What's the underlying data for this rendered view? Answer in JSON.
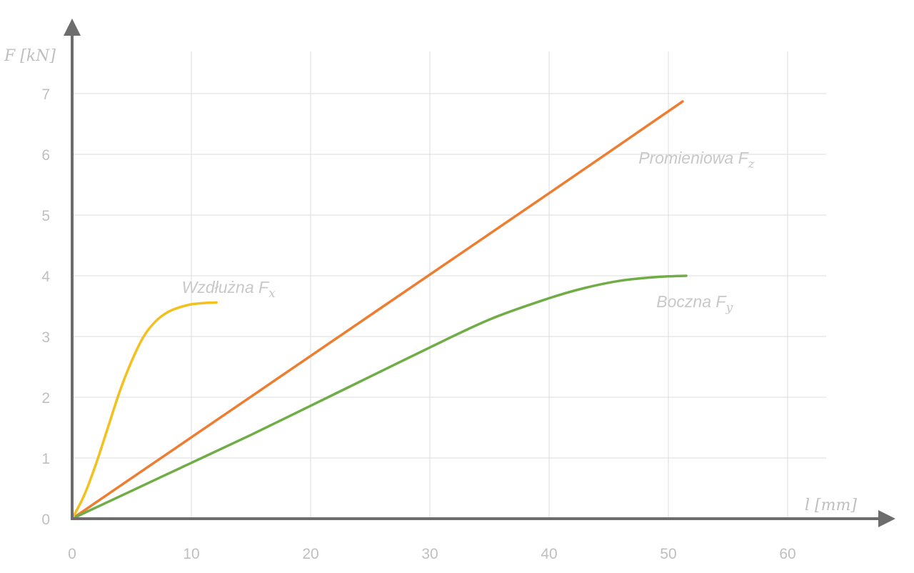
{
  "chart_data": {
    "type": "line",
    "xlabel": "l [mm]",
    "ylabel": "F [kN]",
    "xlim": [
      0,
      63
    ],
    "ylim": [
      0,
      7.5
    ],
    "x_ticks": [
      0,
      10,
      20,
      30,
      40,
      50,
      60
    ],
    "y_ticks": [
      0,
      1,
      2,
      3,
      4,
      5,
      6,
      7
    ],
    "grid": true,
    "legend": "none",
    "series": [
      {
        "label_main": "Promieniowa F",
        "label_sub": "z",
        "color": "#ed7d31",
        "points": [
          [
            0,
            0
          ],
          [
            10,
            1.34
          ],
          [
            20,
            2.68
          ],
          [
            30,
            4.02
          ],
          [
            40,
            5.36
          ],
          [
            51.2,
            6.87
          ]
        ],
        "label_at": [
          47.5,
          5.85
        ]
      },
      {
        "label_main": "Boczna F",
        "label_sub": "y",
        "color": "#70ad47",
        "points": [
          [
            0,
            0
          ],
          [
            5,
            0.46
          ],
          [
            10,
            0.92
          ],
          [
            15,
            1.38
          ],
          [
            20,
            1.86
          ],
          [
            25,
            2.34
          ],
          [
            30,
            2.82
          ],
          [
            35,
            3.28
          ],
          [
            40,
            3.63
          ],
          [
            43,
            3.8
          ],
          [
            46,
            3.92
          ],
          [
            49,
            3.98
          ],
          [
            51.5,
            4.0
          ]
        ],
        "label_at": [
          49,
          3.48
        ]
      },
      {
        "label_main": "Wzdłużna F",
        "label_sub": "x",
        "color": "#f4c01d",
        "points": [
          [
            0,
            0
          ],
          [
            1,
            0.38
          ],
          [
            2,
            0.9
          ],
          [
            3,
            1.5
          ],
          [
            4,
            2.1
          ],
          [
            5,
            2.6
          ],
          [
            6,
            3.0
          ],
          [
            7,
            3.25
          ],
          [
            8,
            3.4
          ],
          [
            9,
            3.48
          ],
          [
            10,
            3.53
          ],
          [
            11,
            3.55
          ],
          [
            12.1,
            3.56
          ]
        ],
        "label_at": [
          9.2,
          3.72
        ]
      }
    ]
  }
}
